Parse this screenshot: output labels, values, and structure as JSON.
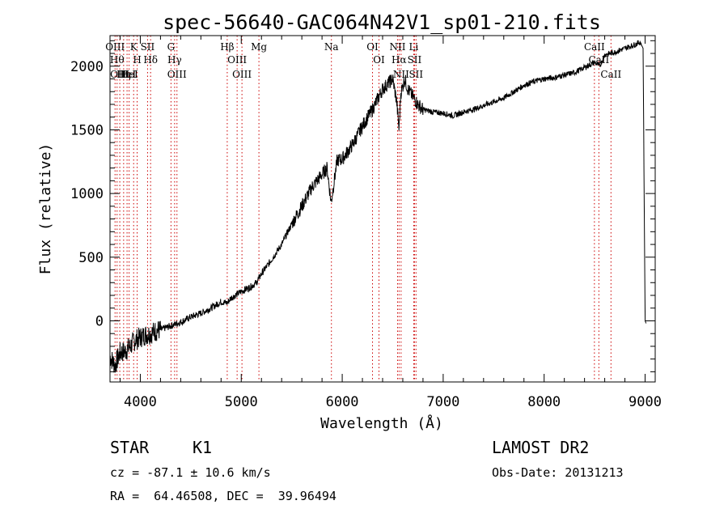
{
  "chart_data": {
    "type": "line",
    "title": "spec-56640-GAC064N42V1_sp01-210.fits",
    "xlabel": "Wavelength (Å)",
    "ylabel": "Flux (relative)",
    "xlim": [
      3700,
      9100
    ],
    "ylim": [
      -480,
      2240
    ],
    "xticks": [
      4000,
      5000,
      6000,
      7000,
      8000,
      9000
    ],
    "yticks": [
      0,
      500,
      1000,
      1500,
      2000
    ],
    "grid": false,
    "series": [
      {
        "x": [
          3700,
          3750,
          3800,
          3850,
          3900,
          3950,
          4000,
          4050,
          4100,
          4150,
          4200,
          4300,
          4400,
          4500,
          4600,
          4700,
          4800,
          4860,
          4900,
          5000,
          5100,
          5150,
          5200,
          5300,
          5400,
          5500,
          5600,
          5700,
          5800,
          5850,
          5890,
          5950,
          6000,
          6100,
          6200,
          6300,
          6350,
          6400,
          6450,
          6500,
          6540,
          6563,
          6580,
          6620,
          6650,
          6700,
          6750,
          6800,
          6900,
          7000,
          7100,
          7200,
          7300,
          7400,
          7500,
          7600,
          7700,
          7800,
          7900,
          8000,
          8100,
          8200,
          8300,
          8400,
          8500,
          8550,
          8600,
          8700,
          8800,
          8900,
          8950,
          8980,
          9000,
          9010
        ],
        "y": [
          -280,
          -350,
          -250,
          -240,
          -200,
          -150,
          -130,
          -110,
          -100,
          -80,
          -70,
          -40,
          -10,
          30,
          60,
          100,
          150,
          140,
          180,
          230,
          270,
          300,
          370,
          480,
          600,
          760,
          900,
          1050,
          1150,
          1200,
          930,
          1260,
          1270,
          1380,
          1530,
          1660,
          1740,
          1820,
          1860,
          1900,
          1720,
          1500,
          1790,
          1900,
          1820,
          1760,
          1700,
          1660,
          1640,
          1630,
          1610,
          1640,
          1660,
          1690,
          1720,
          1750,
          1800,
          1850,
          1880,
          1900,
          1910,
          1930,
          1950,
          1990,
          2030,
          2000,
          2090,
          2110,
          2140,
          2170,
          2190,
          2140,
          0,
          -20
        ]
      }
    ],
    "lines": [
      {
        "wl": 3750,
        "label": "OIII"
      },
      {
        "wl": 3770,
        "label": "Hθ"
      },
      {
        "wl": 3797,
        "label": "OIII"
      },
      {
        "wl": 3835,
        "label": "Hη"
      },
      {
        "wl": 3869,
        "label": "HeI"
      },
      {
        "wl": 3889,
        "label": "HeI"
      },
      {
        "wl": 3934,
        "label": "K"
      },
      {
        "wl": 3969,
        "label": "H"
      },
      {
        "wl": 4072,
        "label": "SII"
      },
      {
        "wl": 4102,
        "label": "Hδ"
      },
      {
        "wl": 4304,
        "label": "G"
      },
      {
        "wl": 4340,
        "label": "Hγ"
      },
      {
        "wl": 4363,
        "label": "OIII"
      },
      {
        "wl": 4861,
        "label": "Hβ"
      },
      {
        "wl": 4959,
        "label": "OIII"
      },
      {
        "wl": 5007,
        "label": "OIII"
      },
      {
        "wl": 5175,
        "label": "Mg"
      },
      {
        "wl": 5893,
        "label": "Na"
      },
      {
        "wl": 6300,
        "label": "OI"
      },
      {
        "wl": 6364,
        "label": "OI"
      },
      {
        "wl": 6548,
        "label": "NII"
      },
      {
        "wl": 6563,
        "label": "Hα"
      },
      {
        "wl": 6583,
        "label": "NII"
      },
      {
        "wl": 6708,
        "label": "Li"
      },
      {
        "wl": 6716,
        "label": "SII"
      },
      {
        "wl": 6731,
        "label": "SII"
      },
      {
        "wl": 8498,
        "label": "CaII"
      },
      {
        "wl": 8542,
        "label": "CaII"
      },
      {
        "wl": 8662,
        "label": "CaII"
      }
    ]
  },
  "info": {
    "class_label": "STAR",
    "subclass": "K1",
    "survey": "LAMOST DR2",
    "cz": "cz = -87.1 ± 10.6 km/s",
    "obs_date": "Obs-Date: 20131213",
    "radec": "RA =  64.46508, DEC =  39.96494"
  },
  "colors": {
    "line_marker": "#cc0000",
    "spectrum": "#000000"
  }
}
